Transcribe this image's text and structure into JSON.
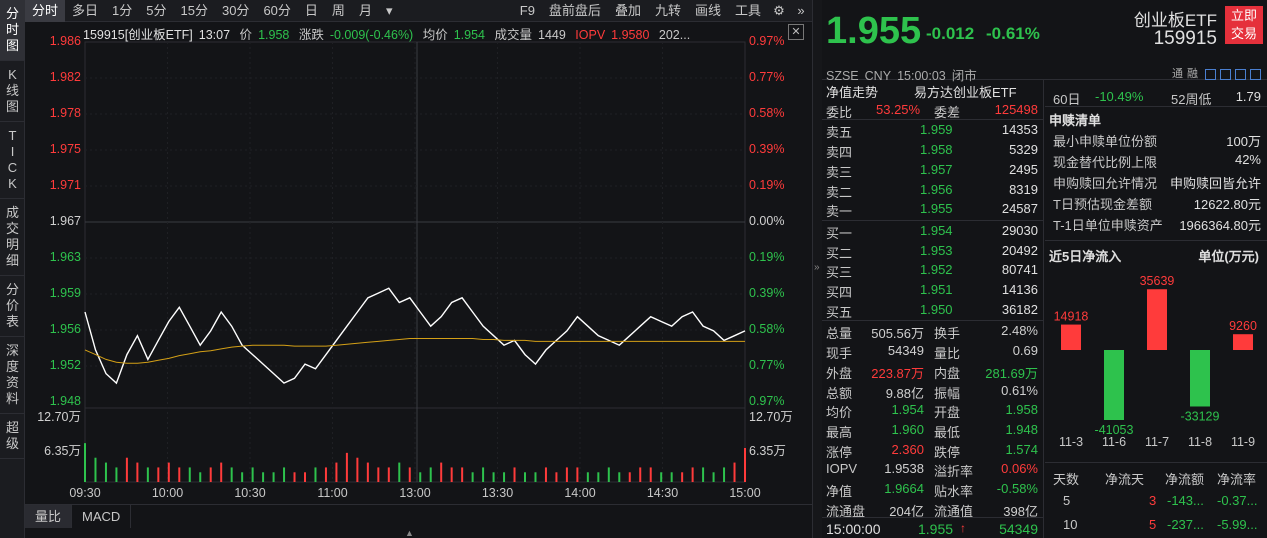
{
  "left_tabs": [
    {
      "id": "fenshi",
      "chars": [
        "分",
        "时",
        "图"
      ],
      "active": true
    },
    {
      "id": "kline",
      "chars": [
        "K",
        "线",
        "图"
      ],
      "active": false
    },
    {
      "id": "tick",
      "chars": [
        "T",
        "I",
        "C",
        "K"
      ],
      "active": false
    },
    {
      "id": "deals",
      "chars": [
        "成",
        "交",
        "明",
        "细"
      ],
      "active": false
    },
    {
      "id": "pricetable",
      "chars": [
        "分",
        "价",
        "表"
      ],
      "active": false
    },
    {
      "id": "depth",
      "chars": [
        "深",
        "度",
        "资",
        "料"
      ],
      "active": false
    },
    {
      "id": "super",
      "chars": [
        "超",
        "级"
      ],
      "active": false
    }
  ],
  "toolbar": {
    "periods": [
      "分时",
      "多日",
      "1分",
      "5分",
      "15分",
      "30分",
      "60分",
      "日",
      "周",
      "月"
    ],
    "dropdown": "▾",
    "right_items": [
      "F9",
      "盘前盘后",
      "叠加",
      "九转",
      "画线",
      "工具"
    ],
    "gear_icon": "⚙",
    "collapse_icon": "»"
  },
  "infoline": {
    "title": "159915[创业板ETF]",
    "time": "13:07",
    "price_label": "价",
    "price": "1.958",
    "change_label": "涨跌",
    "change": "-0.009(-0.46%)",
    "avg_label": "均价",
    "avg": "1.954",
    "vol_label": "成交量",
    "vol": "1449",
    "iopv_label": "IOPV",
    "iopv": "1.9580",
    "tail": "202..."
  },
  "chart_data": {
    "type": "line",
    "title": "159915[创业板ETF]",
    "prev_close": 1.967,
    "price_ticks": [
      "1.986",
      "1.982",
      "1.978",
      "1.975",
      "1.971",
      "1.967",
      "1.963",
      "1.959",
      "1.956",
      "1.952",
      "1.948"
    ],
    "pct_ticks": [
      "0.97%",
      "0.77%",
      "0.58%",
      "0.39%",
      "0.19%",
      "0.00%",
      "0.19%",
      "0.39%",
      "0.58%",
      "0.77%",
      "0.97%"
    ],
    "ylim": [
      1.948,
      1.986
    ],
    "volume_ticks": [
      "12.70万",
      "6.35万"
    ],
    "volume_ticks_right": [
      "12.70万",
      "6.35万"
    ],
    "time_ticks": [
      "09:30",
      "10:00",
      "10:30",
      "11:00",
      "13:00",
      "13:30",
      "14:00",
      "14:30",
      "15:00"
    ],
    "series": [
      {
        "values": [
          1.9575,
          1.9535,
          1.951,
          1.95,
          1.953,
          1.955,
          1.9525,
          1.9545,
          1.9565,
          1.958,
          1.956,
          1.954,
          1.9555,
          1.9575,
          1.956,
          1.954,
          1.953,
          1.952,
          1.951,
          1.95,
          1.9505,
          1.952,
          1.9515,
          1.953,
          1.9545,
          1.956,
          1.9575,
          1.959,
          1.9595,
          1.96,
          1.9585,
          1.959,
          1.9575,
          1.956,
          1.957,
          1.9585,
          1.959,
          1.9575,
          1.956,
          1.955,
          1.954,
          1.9545,
          1.953,
          1.952,
          1.9535,
          1.9545,
          1.9555,
          1.957,
          1.956,
          1.955,
          1.9545,
          1.954,
          1.955,
          1.956,
          1.957,
          1.9565,
          1.956,
          1.957,
          1.9575,
          1.956,
          1.9555,
          1.9545,
          1.955,
          1.9555
        ]
      },
      {
        "values": [
          1.9535,
          1.953,
          1.9525,
          1.9522,
          1.9521,
          1.9521,
          1.9522,
          1.9524,
          1.9526,
          1.9529,
          1.9531,
          1.9533,
          1.9534,
          1.9536,
          1.9538,
          1.9539,
          1.954,
          1.954,
          1.954,
          1.954,
          1.9539,
          1.9539,
          1.9539,
          1.9539,
          1.954,
          1.9541,
          1.9542,
          1.9543,
          1.9544,
          1.9545,
          1.9546,
          1.9547,
          1.9547,
          1.9547,
          1.9547,
          1.9547,
          1.9547,
          1.9547,
          1.9546,
          1.9546,
          1.9545,
          1.9545,
          1.9545,
          1.9544,
          1.9544,
          1.9544,
          1.9544,
          1.9544,
          1.9544,
          1.9544,
          1.9544,
          1.9544,
          1.9544,
          1.9544,
          1.9544,
          1.9544,
          1.9544,
          1.9544,
          1.9544,
          1.9544,
          1.9544,
          1.9544,
          1.9544,
          1.9544
        ]
      }
    ],
    "volume": [
      8,
      5,
      4,
      3,
      5,
      4,
      3,
      3,
      4,
      3,
      3,
      2,
      3,
      4,
      3,
      2,
      3,
      2,
      2,
      3,
      2,
      2,
      3,
      3,
      4,
      6,
      5,
      4,
      3,
      3,
      4,
      3,
      2,
      3,
      4,
      3,
      3,
      2,
      3,
      2,
      2,
      3,
      2,
      2,
      3,
      2,
      3,
      3,
      2,
      2,
      3,
      2,
      2,
      3,
      3,
      2,
      2,
      2,
      3,
      3,
      2,
      3,
      4,
      7
    ]
  },
  "indicator_tabs": [
    "量比",
    "MACD"
  ],
  "header": {
    "price": "1.955",
    "change": "-0.012",
    "change_pct": "-0.61%",
    "name": "创业板ETF",
    "code": "159915",
    "trade_button": "立即交易",
    "exchange": "SZSE",
    "currency": "CNY",
    "time": "15:00:03",
    "status": "闭市",
    "top_icons": [
      "通",
      "融"
    ]
  },
  "quote": {
    "nav_title": "净值走势",
    "fund_name": "易方达创业板ETF",
    "weibi_label": "委比",
    "weibi": "53.25%",
    "weicha_label": "委差",
    "weicha": "125498",
    "asks": [
      {
        "label": "卖五",
        "price": "1.959",
        "vol": "14353",
        "dir": "down"
      },
      {
        "label": "卖四",
        "price": "1.958",
        "vol": "5329",
        "dir": "down"
      },
      {
        "label": "卖三",
        "price": "1.957",
        "vol": "2495",
        "dir": "down"
      },
      {
        "label": "卖二",
        "price": "1.956",
        "vol": "8319",
        "dir": "down"
      },
      {
        "label": "卖一",
        "price": "1.955",
        "vol": "24587",
        "dir": "down"
      }
    ],
    "bids": [
      {
        "label": "买一",
        "price": "1.954",
        "vol": "29030",
        "dir": "down"
      },
      {
        "label": "买二",
        "price": "1.953",
        "vol": "20492",
        "dir": "down"
      },
      {
        "label": "买三",
        "price": "1.952",
        "vol": "80741",
        "dir": "down"
      },
      {
        "label": "买四",
        "price": "1.951",
        "vol": "14136",
        "dir": "down"
      },
      {
        "label": "买五",
        "price": "1.950",
        "vol": "36182",
        "dir": "down"
      }
    ],
    "stats": [
      {
        "l1": "总量",
        "v1": "505.56万",
        "c1": "neutral",
        "l2": "换手",
        "v2": "2.48%",
        "c2": "neutral"
      },
      {
        "l1": "现手",
        "v1": "54349",
        "c1": "neutral",
        "l2": "量比",
        "v2": "0.69",
        "c2": "neutral"
      },
      {
        "l1": "外盘",
        "v1": "223.87万",
        "c1": "up",
        "l2": "内盘",
        "v2": "281.69万",
        "c2": "down"
      },
      {
        "l1": "总额",
        "v1": "9.88亿",
        "c1": "neutral",
        "l2": "振幅",
        "v2": "0.61%",
        "c2": "neutral"
      },
      {
        "l1": "均价",
        "v1": "1.954",
        "c1": "down",
        "l2": "开盘",
        "v2": "1.958",
        "c2": "down"
      },
      {
        "l1": "最高",
        "v1": "1.960",
        "c1": "down",
        "l2": "最低",
        "v2": "1.948",
        "c2": "down"
      },
      {
        "l1": "涨停",
        "v1": "2.360",
        "c1": "up",
        "l2": "跌停",
        "v2": "1.574",
        "c2": "down"
      },
      {
        "l1": "IOPV",
        "v1": "1.9538",
        "c1": "neutral",
        "l2": "溢折率",
        "v2": "0.06%",
        "c2": "up"
      },
      {
        "l1": "净值",
        "v1": "1.9664",
        "c1": "down",
        "l2": "贴水率",
        "v2": "-0.58%",
        "c2": "down"
      },
      {
        "l1": "流通盘",
        "v1": "204亿",
        "c1": "neutral",
        "l2": "流通值",
        "v2": "398亿",
        "c2": "neutral"
      }
    ],
    "last_deal": {
      "time": "15:00:00",
      "price": "1.955",
      "arrow": "↑",
      "vol": "54349"
    }
  },
  "info": {
    "period_row": {
      "l1": "60日",
      "v1": "-10.49%",
      "l2": "52周低",
      "v2": "1.79"
    },
    "subscribe_title": "申赎清单",
    "subscribe_rows": [
      {
        "label": "最小申赎单位份额",
        "value": "100万"
      },
      {
        "label": "现金替代比例上限",
        "value": "42%"
      },
      {
        "label": "申购赎回允许情况",
        "value": "申购赎回皆允许"
      },
      {
        "label": "T日预估现金差额",
        "value": "12622.80元"
      },
      {
        "label": "T-1日单位申赎资产",
        "value": "1966364.80元"
      }
    ],
    "flow_title": "近5日净流入",
    "flow_unit": "单位(万元)",
    "flow_chart": {
      "type": "bar",
      "categories": [
        "11-3",
        "11-6",
        "11-7",
        "11-8",
        "11-9"
      ],
      "values": [
        14918,
        -41053,
        35639,
        -33129,
        9260
      ]
    },
    "flow_table_headers": [
      "天数",
      "净流天",
      "净流额",
      "净流率"
    ],
    "flow_table_rows": [
      {
        "days": "5",
        "net_days": "3",
        "net_amount": "-143...",
        "net_rate": "-0.37..."
      },
      {
        "days": "10",
        "net_days": "5",
        "net_amount": "-237...",
        "net_rate": "-5.99..."
      }
    ]
  },
  "colors": {
    "up": "#ff3b3b",
    "down": "#2ec24d",
    "avg_line": "#d4a017",
    "price_line": "#ffffff",
    "background": "#131417"
  }
}
